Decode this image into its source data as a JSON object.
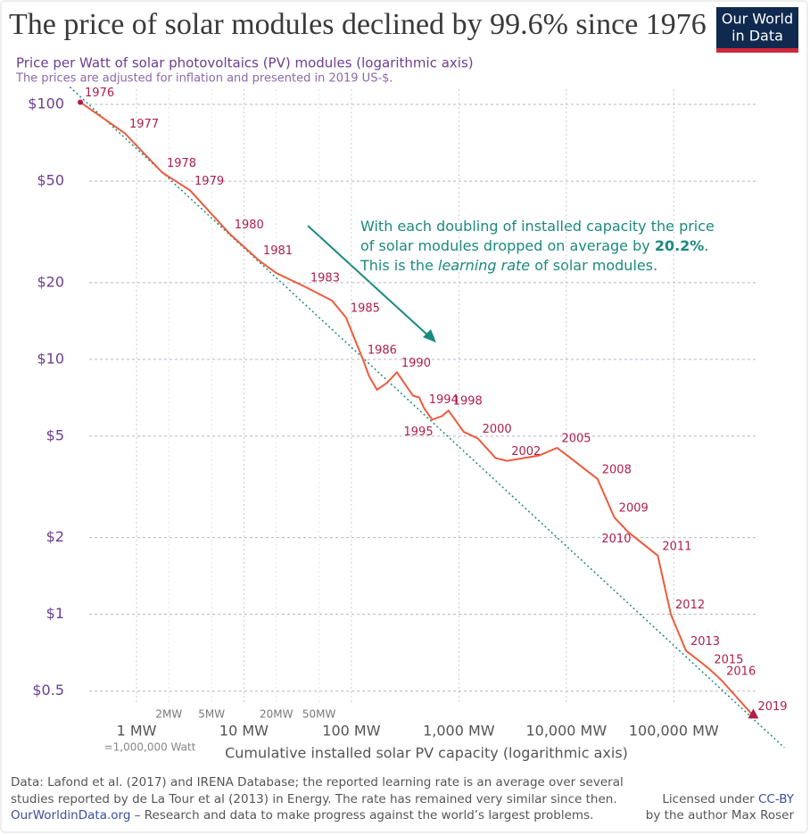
{
  "chart_data": {
    "type": "line",
    "title": "The price of solar modules declined by 99.6% since 1976",
    "subtitle": "Price per Watt of solar photovoltaics (PV) modules (logarithmic axis)",
    "note": "The prices are adjusted for inflation and presented in 2019 US-$.",
    "logo": [
      "Our World",
      "in Data"
    ],
    "x_label": "Cumulative installed solar PV capacity (logarithmic axis)",
    "x_note": "=1,000,000 Watt",
    "log_x": true,
    "log_y": true,
    "grid": true,
    "xlim": [
      0.25,
      600000
    ],
    "ylim": [
      0.35,
      120
    ],
    "xticks": [
      {
        "value": 1,
        "label": "1 MW"
      },
      {
        "value": 10,
        "label": "10 MW"
      },
      {
        "value": 100,
        "label": "100 MW"
      },
      {
        "value": 1000,
        "label": "1,000 MW"
      },
      {
        "value": 10000,
        "label": "10,000 MW"
      },
      {
        "value": 100000,
        "label": "100,000 MW"
      }
    ],
    "xminorticks": [
      {
        "value": 2,
        "label": "2MW"
      },
      {
        "value": 5,
        "label": "5MW"
      },
      {
        "value": 20,
        "label": "20MW"
      },
      {
        "value": 50,
        "label": "50MW"
      }
    ],
    "yticks": [
      {
        "value": 100,
        "label": "$100"
      },
      {
        "value": 50,
        "label": "$50"
      },
      {
        "value": 20,
        "label": "$20"
      },
      {
        "value": 10,
        "label": "$10"
      },
      {
        "value": 5,
        "label": "$5"
      },
      {
        "value": 2,
        "label": "$2"
      },
      {
        "value": 1,
        "label": "$1"
      },
      {
        "value": 0.5,
        "label": "$0.5"
      }
    ],
    "series": [
      {
        "name": "Price per Watt",
        "color": "#ee5a3c",
        "x": [
          0.3,
          0.78,
          1.74,
          3.15,
          7.4,
          13.7,
          20,
          37.7,
          66,
          89,
          128,
          146,
          173,
          215,
          265,
          375,
          426,
          478,
          565,
          700,
          800,
          1110,
          1500,
          2200,
          2800,
          4000,
          5600,
          8200,
          11000,
          15000,
          19500,
          28000,
          37800,
          71000,
          94000,
          130000,
          170000,
          215000,
          280000,
          550000
        ],
        "values": [
          102,
          77,
          54,
          46,
          31,
          24.5,
          21.8,
          19.2,
          17,
          14.6,
          10,
          8.6,
          7.6,
          8.1,
          8.9,
          7.2,
          7.1,
          6.4,
          5.8,
          6.0,
          6.3,
          5.2,
          4.9,
          4.1,
          4.0,
          4.1,
          4.2,
          4.5,
          4.1,
          3.7,
          3.4,
          2.4,
          2.1,
          1.7,
          1.0,
          0.72,
          0.66,
          0.61,
          0.55,
          0.4
        ],
        "point_labels": [
          "1976",
          "1977",
          "1978",
          "1979",
          "1980",
          "1981",
          null,
          "1983",
          null,
          "1985",
          "1986",
          null,
          null,
          null,
          "1990",
          null,
          null,
          "1994",
          "1995",
          null,
          "1998",
          null,
          "2000",
          null,
          "2002",
          null,
          null,
          "2005",
          null,
          null,
          "2008",
          "2009",
          "2010",
          "2011",
          "2012",
          "2013",
          null,
          "2015",
          "2016",
          "2019"
        ]
      },
      {
        "name": "Learning rate trend",
        "color": "#1a8a7e",
        "x": [
          0.24,
          1070000
        ],
        "values": [
          117,
          0.3
        ]
      }
    ],
    "annotation": [
      "With each doubling of installed capacity the price",
      "of solar modules dropped on average by ",
      "20.2%",
      ".",
      "This is the ",
      "learning rate",
      " of solar modules."
    ],
    "footer": [
      "Data: Lafond et al. (2017) and IRENA Database; the reported learning rate is an average over several",
      "studies reported by de La Tour et al (2013) in Energy. The rate has remained very similar since then.",
      "OurWorldinData.org",
      " – Research and data to make progress against the world’s largest problems."
    ],
    "license": [
      "Licensed under ",
      "CC-BY",
      "by the author Max Roser"
    ]
  }
}
